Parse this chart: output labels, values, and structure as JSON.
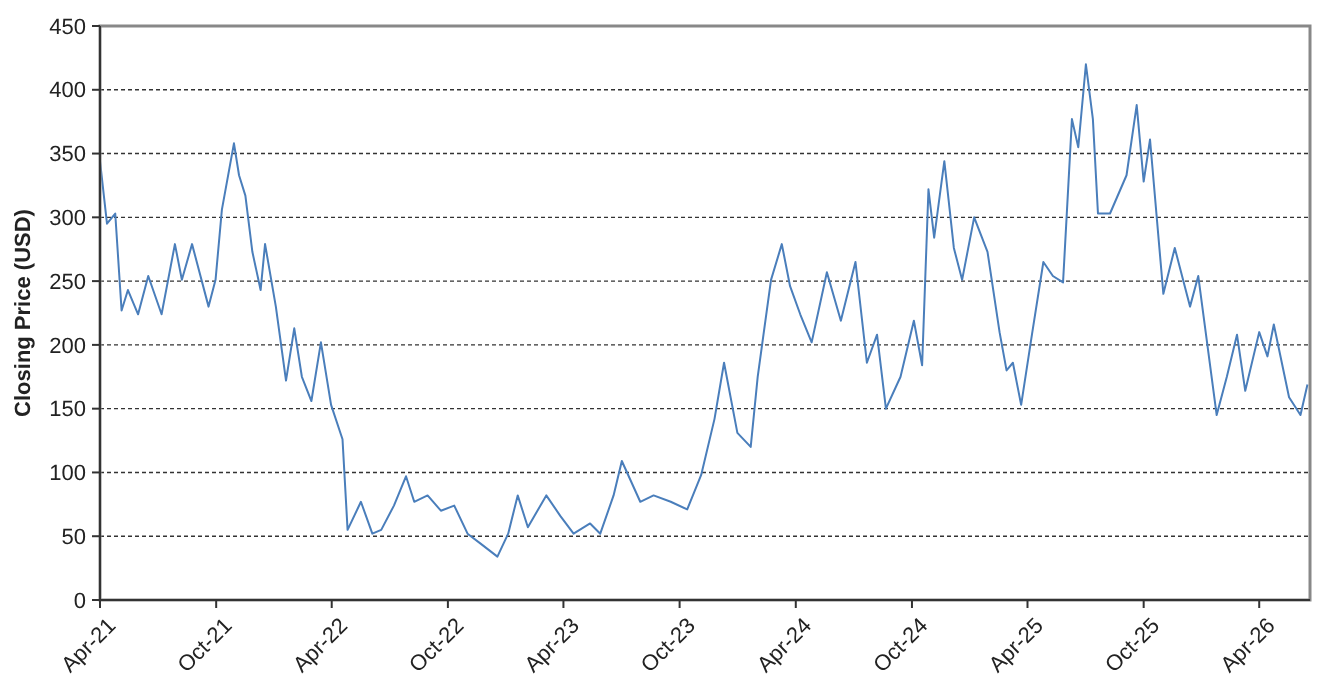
{
  "chart_data": {
    "type": "line",
    "ylabel": "Closing Price (USD)",
    "xlim": [
      "2021-04-01",
      "2026-06-20"
    ],
    "ylim": [
      0,
      450
    ],
    "yticks": [
      0,
      50,
      100,
      150,
      200,
      250,
      300,
      350,
      400,
      450
    ],
    "xticks": [
      {
        "value": "2021-04-01",
        "label": "Apr-21"
      },
      {
        "value": "2021-10-01",
        "label": "Oct-21"
      },
      {
        "value": "2022-04-01",
        "label": "Apr-22"
      },
      {
        "value": "2022-10-01",
        "label": "Oct-22"
      },
      {
        "value": "2023-04-01",
        "label": "Apr-23"
      },
      {
        "value": "2023-10-01",
        "label": "Oct-23"
      },
      {
        "value": "2024-04-01",
        "label": "Apr-24"
      },
      {
        "value": "2024-10-01",
        "label": "Oct-24"
      },
      {
        "value": "2025-04-01",
        "label": "Apr-25"
      },
      {
        "value": "2025-10-01",
        "label": "Oct-25"
      },
      {
        "value": "2026-04-01",
        "label": "Apr-26"
      }
    ],
    "grid": "y",
    "line_style": "solid",
    "marker": "none",
    "series": [
      {
        "color": "#4a7ebb",
        "x": [
          "2021-04-01",
          "2021-04-12",
          "2021-04-25",
          "2021-05-05",
          "2021-05-15",
          "2021-05-31",
          "2021-06-16",
          "2021-07-07",
          "2021-07-28",
          "2021-08-08",
          "2021-08-24",
          "2021-09-19",
          "2021-09-30",
          "2021-10-10",
          "2021-10-29",
          "2021-11-06",
          "2021-11-16",
          "2021-11-27",
          "2021-12-10",
          "2021-12-17",
          "2022-01-03",
          "2022-01-19",
          "2022-02-01",
          "2022-02-13",
          "2022-02-28",
          "2022-03-15",
          "2022-03-31",
          "2022-04-18",
          "2022-04-26",
          "2022-05-17",
          "2022-06-04",
          "2022-06-18",
          "2022-07-08",
          "2022-07-27",
          "2022-08-09",
          "2022-08-30",
          "2022-09-20",
          "2022-10-11",
          "2022-11-01",
          "2022-11-22",
          "2022-12-18",
          "2023-01-04",
          "2023-01-19",
          "2023-02-04",
          "2023-03-05",
          "2023-03-27",
          "2023-04-17",
          "2023-05-13",
          "2023-05-29",
          "2023-06-19",
          "2023-07-02",
          "2023-07-31",
          "2023-08-21",
          "2023-09-17",
          "2023-10-13",
          "2023-11-04",
          "2023-11-25",
          "2023-12-10",
          "2023-12-31",
          "2024-01-21",
          "2024-02-01",
          "2024-02-22",
          "2024-03-10",
          "2024-03-23",
          "2024-04-08",
          "2024-04-26",
          "2024-05-20",
          "2024-06-11",
          "2024-07-04",
          "2024-07-22",
          "2024-08-07",
          "2024-08-21",
          "2024-09-13",
          "2024-10-04",
          "2024-10-17",
          "2024-10-27",
          "2024-11-05",
          "2024-11-21",
          "2024-12-06",
          "2024-12-19",
          "2025-01-07",
          "2025-01-28",
          "2025-02-16",
          "2025-02-27",
          "2025-03-09",
          "2025-03-22",
          "2025-04-08",
          "2025-04-26",
          "2025-05-11",
          "2025-05-27",
          "2025-06-10",
          "2025-06-20",
          "2025-07-02",
          "2025-07-13",
          "2025-07-21",
          "2025-08-09",
          "2025-09-04",
          "2025-09-20",
          "2025-10-01",
          "2025-10-11",
          "2025-11-01",
          "2025-11-19",
          "2025-12-13",
          "2025-12-26",
          "2026-01-24",
          "2026-02-09",
          "2026-02-25",
          "2026-03-10",
          "2026-04-01",
          "2026-04-14",
          "2026-04-24",
          "2026-05-18",
          "2026-06-05",
          "2026-06-16"
        ],
        "values": [
          344,
          295,
          303,
          227,
          243,
          224,
          254,
          224,
          279,
          251,
          279,
          230,
          251,
          306,
          358,
          333,
          317,
          273,
          243,
          279,
          230,
          172,
          213,
          175,
          156,
          202,
          153,
          126,
          55,
          77,
          52,
          55,
          74,
          97,
          77,
          82,
          70,
          74,
          52,
          44,
          34,
          52,
          82,
          57,
          82,
          66,
          52,
          60,
          52,
          82,
          109,
          77,
          82,
          77,
          71,
          98,
          142,
          186,
          131,
          120,
          175,
          251,
          279,
          246,
          224,
          202,
          257,
          219,
          265,
          186,
          208,
          150,
          175,
          219,
          184,
          322,
          284,
          344,
          276,
          251,
          300,
          273,
          210,
          180,
          186,
          153,
          208,
          265,
          254,
          249,
          377,
          355,
          420,
          377,
          303,
          303,
          333,
          388,
          328,
          361,
          240,
          276,
          230,
          254,
          145,
          175,
          208,
          164,
          210,
          191,
          216,
          159,
          145,
          169
        ]
      }
    ]
  }
}
